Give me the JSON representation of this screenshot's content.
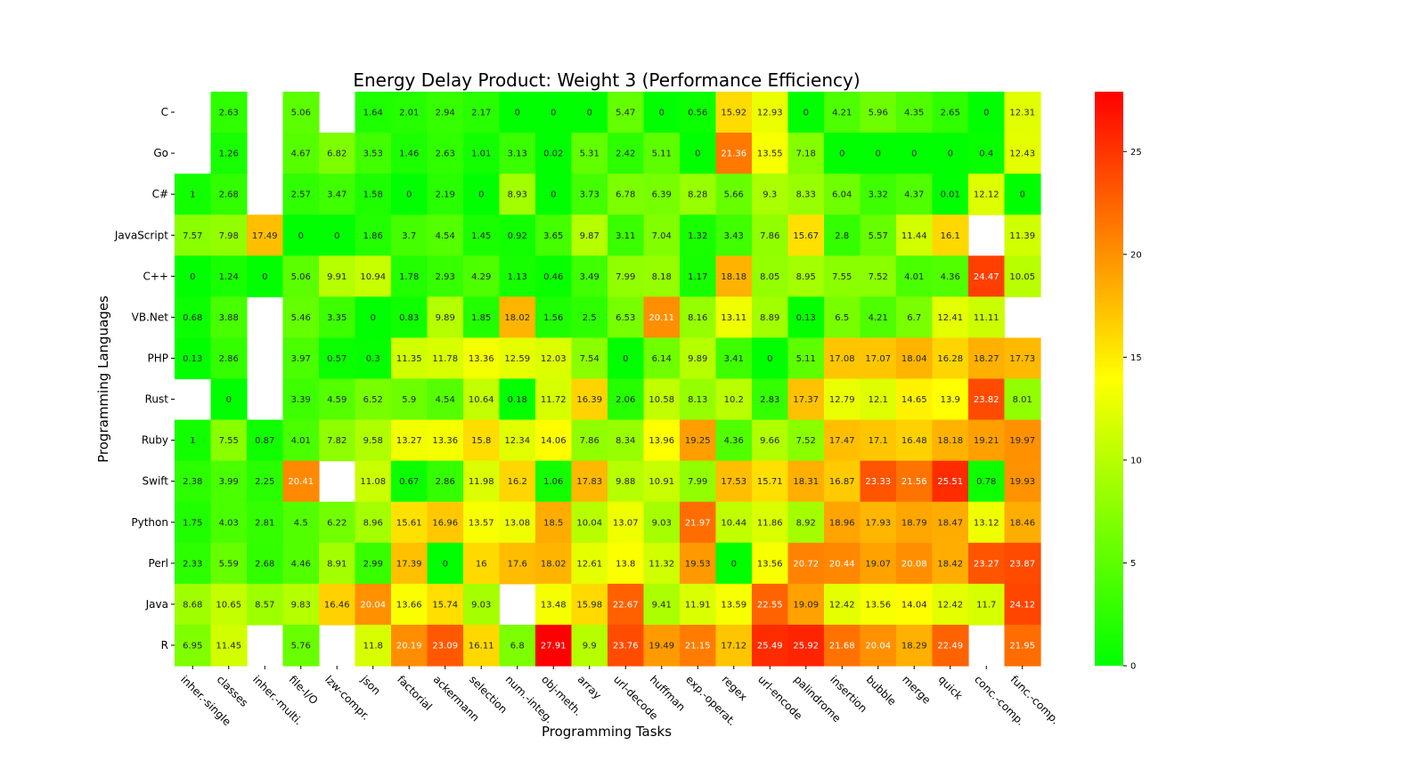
{
  "chart_data": {
    "type": "heatmap",
    "title": "Energy Delay Product: Weight 3 (Performance Efficiency)",
    "xlabel": "Programming Tasks",
    "ylabel": "Programming Languages",
    "x_categories": [
      "inher.-single",
      "classes",
      "inher.-multi.",
      "file-I/O",
      "lzw-compr.",
      "json",
      "factorial",
      "ackermann",
      "selection",
      "num.-integ.",
      "obj-meth.",
      "array",
      "url-decode",
      "huffman",
      "exp.-operat.",
      "regex",
      "url-encode",
      "palindrome",
      "insertion",
      "bubble",
      "merge",
      "quick",
      "conc.-comp.",
      "func.-comp."
    ],
    "y_categories": [
      "C",
      "Go",
      "C#",
      "JavaScript",
      "C++",
      "VB.Net",
      "PHP",
      "Rust",
      "Ruby",
      "Swift",
      "Python",
      "Perl",
      "Java",
      "R"
    ],
    "values": [
      [
        null,
        2.63,
        null,
        5.06,
        null,
        1.64,
        2.01,
        2.94,
        2.17,
        0,
        0,
        0,
        5.47,
        0,
        0.56,
        15.92,
        12.93,
        0,
        4.21,
        5.96,
        4.35,
        2.65,
        0,
        12.31
      ],
      [
        null,
        1.26,
        null,
        4.67,
        6.82,
        3.53,
        1.46,
        2.63,
        1.01,
        3.13,
        0.02,
        5.31,
        2.42,
        5.11,
        0,
        21.36,
        13.55,
        7.18,
        0,
        0,
        0,
        0,
        0.4,
        12.43
      ],
      [
        1,
        2.68,
        null,
        2.57,
        3.47,
        1.58,
        0,
        2.19,
        0,
        8.93,
        0,
        3.73,
        6.78,
        6.39,
        8.28,
        5.66,
        9.3,
        8.33,
        6.04,
        3.32,
        4.37,
        0.01,
        12.12,
        0
      ],
      [
        7.57,
        7.98,
        17.49,
        0,
        0,
        1.86,
        3.7,
        4.54,
        1.45,
        0.92,
        3.65,
        9.87,
        3.11,
        7.04,
        1.32,
        3.43,
        7.86,
        15.67,
        2.8,
        5.57,
        11.44,
        16.1,
        null,
        11.39
      ],
      [
        0,
        1.24,
        0,
        5.06,
        9.91,
        10.94,
        1.78,
        2.93,
        4.29,
        1.13,
        0.46,
        3.49,
        7.99,
        8.18,
        1.17,
        18.18,
        8.05,
        8.95,
        7.55,
        7.52,
        4.01,
        4.36,
        24.47,
        10.05
      ],
      [
        0.68,
        3.88,
        null,
        5.46,
        3.35,
        0,
        0.83,
        9.89,
        1.85,
        18.02,
        1.56,
        2.5,
        6.53,
        20.11,
        8.16,
        13.11,
        8.89,
        0.13,
        6.5,
        4.21,
        6.7,
        12.41,
        11.11,
        null
      ],
      [
        0.13,
        2.86,
        null,
        3.97,
        0.57,
        0.3,
        11.35,
        11.78,
        13.36,
        12.59,
        12.03,
        7.54,
        0,
        6.14,
        9.89,
        3.41,
        0,
        5.11,
        17.08,
        17.07,
        18.04,
        16.28,
        18.27,
        17.73
      ],
      [
        null,
        0,
        null,
        3.39,
        4.59,
        6.52,
        5.9,
        4.54,
        10.64,
        0.18,
        11.72,
        16.39,
        2.06,
        10.58,
        8.13,
        10.2,
        2.83,
        17.37,
        12.79,
        12.1,
        14.65,
        13.9,
        23.82,
        8.01
      ],
      [
        1,
        7.55,
        0.87,
        4.01,
        7.82,
        9.58,
        13.27,
        13.36,
        15.8,
        12.34,
        14.06,
        7.86,
        8.34,
        13.96,
        19.25,
        4.36,
        9.66,
        7.52,
        17.47,
        17.1,
        16.48,
        18.18,
        19.21,
        19.97
      ],
      [
        2.38,
        3.99,
        2.25,
        20.41,
        null,
        11.08,
        0.67,
        2.86,
        11.98,
        16.2,
        1.06,
        17.83,
        9.88,
        10.91,
        7.99,
        17.53,
        15.71,
        18.31,
        16.87,
        23.33,
        21.56,
        25.51,
        0.78,
        19.93
      ],
      [
        1.75,
        4.03,
        2.81,
        4.5,
        6.22,
        8.96,
        15.61,
        16.96,
        13.57,
        13.08,
        18.5,
        10.04,
        13.07,
        9.03,
        21.97,
        10.44,
        11.86,
        8.92,
        18.96,
        17.93,
        18.79,
        18.47,
        13.12,
        18.46
      ],
      [
        2.33,
        5.59,
        2.68,
        4.46,
        8.91,
        2.99,
        17.39,
        0,
        16,
        17.6,
        18.02,
        12.61,
        13.8,
        11.32,
        19.53,
        0,
        13.56,
        20.72,
        20.44,
        19.07,
        20.08,
        18.42,
        23.27,
        23.87
      ],
      [
        8.68,
        10.65,
        8.57,
        9.83,
        16.46,
        20.04,
        13.66,
        15.74,
        9.03,
        null,
        13.48,
        15.98,
        22.67,
        9.41,
        11.91,
        13.59,
        22.55,
        19.09,
        12.42,
        13.56,
        14.04,
        12.42,
        11.7,
        24.12
      ],
      [
        6.95,
        11.45,
        null,
        5.76,
        null,
        11.8,
        20.19,
        23.09,
        16.11,
        6.8,
        27.91,
        9.9,
        23.76,
        19.49,
        21.15,
        17.12,
        25.49,
        25.92,
        21.68,
        20.04,
        18.29,
        22.49,
        null,
        21.95
      ]
    ],
    "colorbar": {
      "min": 0,
      "max": 27.91,
      "ticks": [
        0,
        5,
        10,
        15,
        20,
        25
      ],
      "colors": [
        "#00ff00",
        "#ffff00",
        "#ff0000"
      ]
    },
    "grid": false
  }
}
